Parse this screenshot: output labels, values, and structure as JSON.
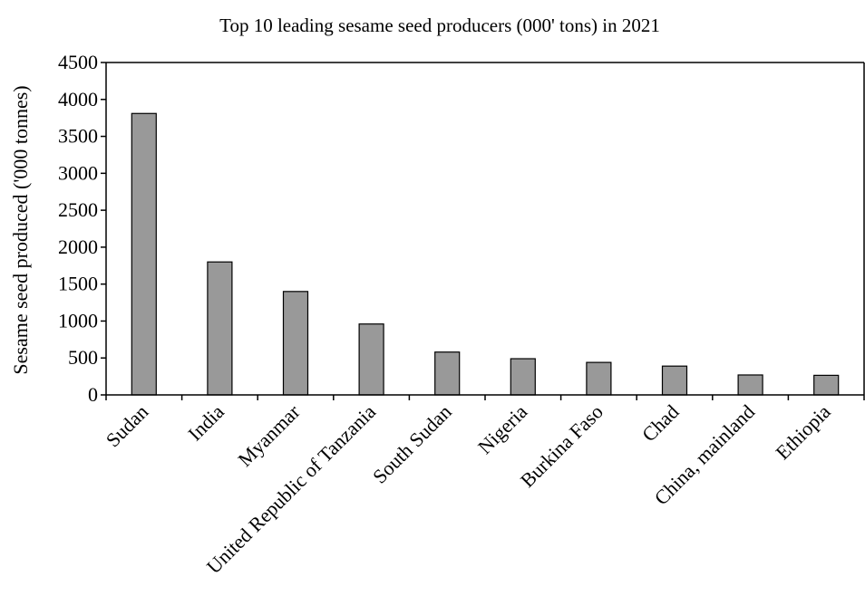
{
  "chart_data": {
    "type": "bar",
    "title": "Top 10 leading sesame seed producers (000' tons) in 2021",
    "xlabel": "",
    "ylabel": "Sesame seed produced ('000 tonnes)",
    "categories": [
      "Sudan",
      "India",
      "Myanmar",
      "United Republic of Tanzania",
      "South Sudan",
      "Nigeria",
      "Burkina Faso",
      "Chad",
      "China, mainland",
      "Ethiopia"
    ],
    "values": [
      3810,
      1800,
      1400,
      960,
      580,
      490,
      440,
      390,
      270,
      265
    ],
    "ylim": [
      0,
      4500
    ],
    "yticks": [
      0,
      500,
      1000,
      1500,
      2000,
      2500,
      3000,
      3500,
      4000,
      4500
    ],
    "grid": false,
    "legend": "none",
    "bar_color": "#999999",
    "bar_edge_color": "#000000"
  }
}
